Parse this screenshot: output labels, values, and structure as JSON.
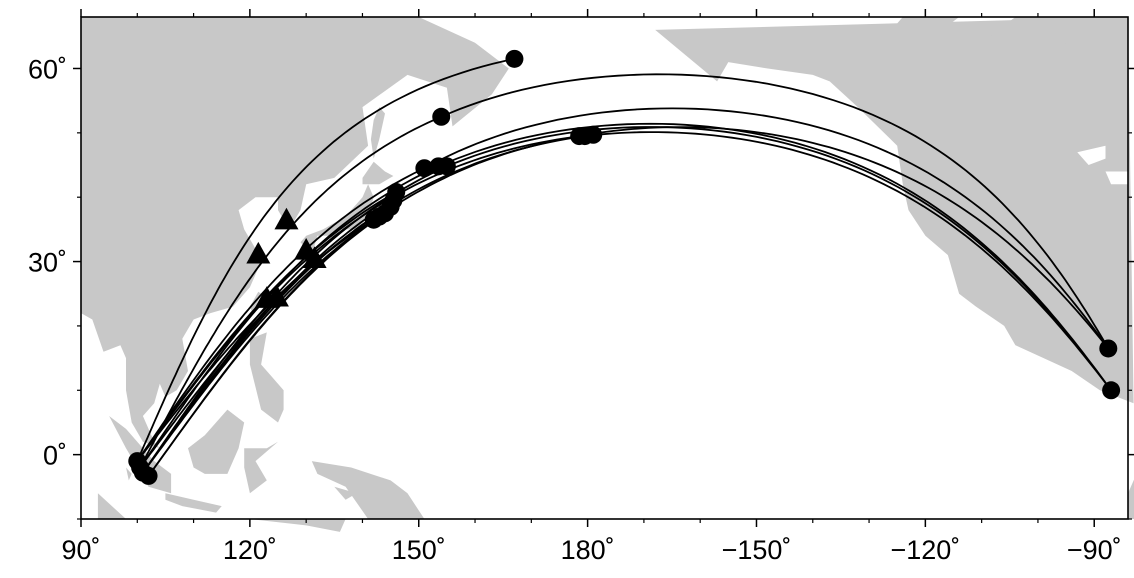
{
  "map": {
    "projection": "equirectangular, Pacific-centred",
    "lon_range": [
      90,
      276
    ],
    "lat_range": [
      -10,
      68
    ],
    "land_color": "#c8c8c8",
    "ocean_color": "#ffffff",
    "path_color": "#000000",
    "x_ticks": [
      {
        "lon": 90,
        "label": "90˚"
      },
      {
        "lon": 120,
        "label": "120˚"
      },
      {
        "lon": 150,
        "label": "150˚"
      },
      {
        "lon": 180,
        "label": "180˚"
      },
      {
        "lon": 210,
        "label": "−150˚"
      },
      {
        "lon": 240,
        "label": "−120˚"
      },
      {
        "lon": 270,
        "label": "−90˚"
      }
    ],
    "y_ticks": [
      {
        "lat": 0,
        "label": "0˚"
      },
      {
        "lat": 30,
        "label": "30˚"
      },
      {
        "lat": 60,
        "label": "60˚"
      }
    ],
    "triangles": [
      {
        "lon": 126.5,
        "lat": 36.5
      },
      {
        "lon": 121.5,
        "lat": 31.2
      },
      {
        "lon": 130.0,
        "lat": 31.8
      },
      {
        "lon": 131.5,
        "lat": 30.5
      },
      {
        "lon": 123.0,
        "lat": 24.3
      },
      {
        "lon": 124.8,
        "lat": 24.5
      }
    ],
    "circles": [
      {
        "lon": 167.0,
        "lat": 61.5
      },
      {
        "lon": 154.0,
        "lat": 52.5
      },
      {
        "lon": 151.0,
        "lat": 44.5
      },
      {
        "lon": 153.5,
        "lat": 44.8
      },
      {
        "lon": 155.0,
        "lat": 44.8
      },
      {
        "lon": 146.0,
        "lat": 40.8
      },
      {
        "lon": 145.5,
        "lat": 39.5
      },
      {
        "lon": 145.0,
        "lat": 38.5
      },
      {
        "lon": 144.0,
        "lat": 37.5
      },
      {
        "lon": 143.0,
        "lat": 37.0
      },
      {
        "lon": 142.0,
        "lat": 36.5
      },
      {
        "lon": 178.5,
        "lat": 49.5
      },
      {
        "lon": 179.5,
        "lat": 49.5
      },
      {
        "lon": 181.0,
        "lat": 49.7
      },
      {
        "lon": 100.0,
        "lat": -1.0
      },
      {
        "lon": 100.5,
        "lat": -2.0
      },
      {
        "lon": 101.0,
        "lat": -2.8
      },
      {
        "lon": 102.0,
        "lat": -3.3
      },
      {
        "lon": 272.5,
        "lat": 16.5
      },
      {
        "lon": 273.0,
        "lat": 10.0
      }
    ],
    "paths": [
      {
        "from": [
          100.0,
          -1.0
        ],
        "to": [
          167.0,
          61.5
        ]
      },
      {
        "from": [
          100.5,
          -2.0
        ],
        "to": [
          154.0,
          52.5
        ]
      },
      {
        "from": [
          100.0,
          -1.0
        ],
        "to": [
          151.0,
          44.5
        ]
      },
      {
        "from": [
          100.5,
          -2.0
        ],
        "to": [
          153.5,
          44.8
        ]
      },
      {
        "from": [
          101.0,
          -2.8
        ],
        "to": [
          155.0,
          44.8
        ]
      },
      {
        "from": [
          100.0,
          -1.0
        ],
        "to": [
          146.0,
          40.8
        ]
      },
      {
        "from": [
          101.0,
          -2.8
        ],
        "to": [
          145.5,
          39.5
        ]
      },
      {
        "from": [
          100.5,
          -2.0
        ],
        "to": [
          145.0,
          38.5
        ]
      },
      {
        "from": [
          102.0,
          -3.3
        ],
        "to": [
          144.0,
          37.5
        ]
      },
      {
        "from": [
          101.0,
          -2.8
        ],
        "to": [
          143.0,
          37.0
        ]
      },
      {
        "from": [
          100.0,
          -1.0
        ],
        "to": [
          142.0,
          36.5
        ]
      },
      {
        "from": [
          102.0,
          -3.3
        ],
        "to": [
          178.5,
          49.5
        ]
      },
      {
        "from": [
          101.0,
          -2.8
        ],
        "to": [
          179.5,
          49.5
        ]
      },
      {
        "from": [
          100.0,
          -1.0
        ],
        "to": [
          181.0,
          49.7
        ]
      },
      {
        "from": [
          154.0,
          52.5
        ],
        "to": [
          272.5,
          16.5
        ]
      },
      {
        "from": [
          151.0,
          44.5
        ],
        "to": [
          272.5,
          16.5
        ]
      },
      {
        "from": [
          153.5,
          44.8
        ],
        "to": [
          273.0,
          10.0
        ]
      },
      {
        "from": [
          155.0,
          44.8
        ],
        "to": [
          273.0,
          10.0
        ]
      },
      {
        "from": [
          179.5,
          49.5
        ],
        "to": [
          273.0,
          10.0
        ]
      },
      {
        "from": [
          178.5,
          49.5
        ],
        "to": [
          272.5,
          16.5
        ]
      }
    ]
  }
}
